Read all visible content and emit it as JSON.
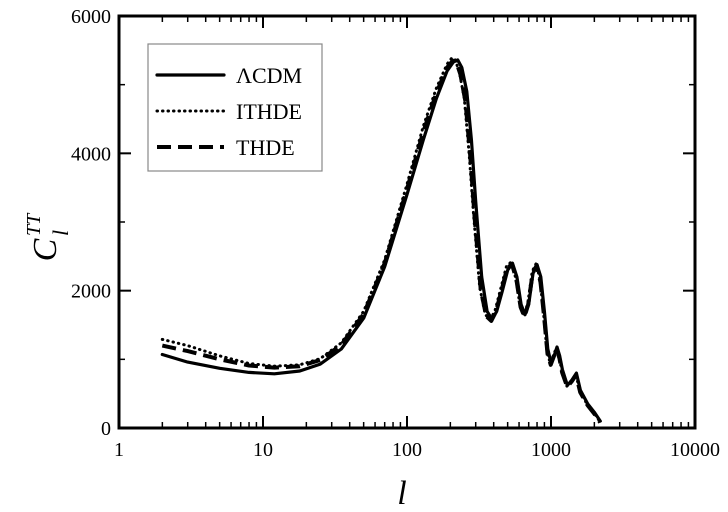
{
  "chart_data": {
    "type": "line",
    "title": "",
    "xlabel": "l",
    "ylabel": {
      "base": "C",
      "superscript": "TT",
      "subscript": "l"
    },
    "xscale": "log",
    "xlim": [
      1,
      10000
    ],
    "ylim": [
      0,
      6000
    ],
    "xticks": [
      1,
      10,
      100,
      1000,
      10000
    ],
    "xtick_labels": [
      "1",
      "10",
      "100",
      "1000",
      "10000"
    ],
    "yticks": [
      0,
      2000,
      4000,
      6000
    ],
    "ytick_labels": [
      "0",
      "2000",
      "4000",
      "6000"
    ],
    "grid": false,
    "legend_position": "top-left",
    "series": [
      {
        "name": "ΛCDM",
        "style": "solid",
        "color": "#000000",
        "x": [
          2,
          3,
          5,
          8,
          12,
          18,
          25,
          35,
          50,
          70,
          100,
          130,
          160,
          190,
          210,
          225,
          240,
          260,
          280,
          300,
          330,
          360,
          390,
          420,
          460,
          500,
          540,
          580,
          620,
          660,
          700,
          750,
          800,
          850,
          900,
          950,
          1000,
          1050,
          1100,
          1150,
          1200,
          1300,
          1400,
          1500,
          1600,
          1800,
          2000,
          2200
        ],
        "y": [
          1070,
          960,
          870,
          810,
          790,
          830,
          930,
          1150,
          1600,
          2350,
          3400,
          4200,
          4800,
          5200,
          5330,
          5360,
          5250,
          4900,
          4200,
          3300,
          2200,
          1700,
          1580,
          1700,
          2000,
          2300,
          2400,
          2200,
          1800,
          1650,
          1800,
          2250,
          2380,
          2200,
          1700,
          1150,
          950,
          1050,
          1180,
          1050,
          850,
          620,
          700,
          800,
          550,
          350,
          230,
          100
        ]
      },
      {
        "name": "ITHDE",
        "style": "dotted",
        "color": "#000000",
        "x": [
          2,
          3,
          5,
          8,
          12,
          18,
          25,
          35,
          50,
          70,
          100,
          130,
          160,
          190,
          205,
          215,
          230,
          250,
          270,
          290,
          320,
          350,
          380,
          410,
          450,
          490,
          530,
          570,
          610,
          650,
          690,
          740,
          790,
          840,
          890,
          940,
          990,
          1040,
          1090,
          1140,
          1190,
          1290,
          1390,
          1490,
          1590,
          1790,
          1990,
          2190
        ],
        "y": [
          1290,
          1200,
          1050,
          940,
          900,
          920,
          1010,
          1240,
          1700,
          2450,
          3550,
          4400,
          4950,
          5300,
          5390,
          5370,
          5200,
          4800,
          4000,
          3100,
          2050,
          1650,
          1580,
          1720,
          2050,
          2350,
          2420,
          2180,
          1780,
          1640,
          1820,
          2280,
          2400,
          2150,
          1650,
          1100,
          940,
          1060,
          1170,
          1030,
          830,
          610,
          690,
          780,
          530,
          340,
          220,
          90
        ]
      },
      {
        "name": "THDE",
        "style": "dashed",
        "color": "#000000",
        "x": [
          2,
          3,
          5,
          8,
          12,
          18,
          25,
          35,
          50,
          70,
          100,
          130,
          160,
          190,
          208,
          220,
          235,
          255,
          275,
          295,
          325,
          355,
          385,
          415,
          455,
          495,
          535,
          575,
          615,
          655,
          695,
          745,
          795,
          845,
          895,
          945,
          995,
          1045,
          1095,
          1145,
          1195,
          1295,
          1395,
          1495,
          1595,
          1795,
          1995,
          2195
        ],
        "y": [
          1200,
          1120,
          1000,
          910,
          880,
          900,
          990,
          1210,
          1660,
          2400,
          3480,
          4320,
          4880,
          5250,
          5350,
          5330,
          5150,
          4750,
          3950,
          3050,
          2020,
          1630,
          1560,
          1700,
          2020,
          2320,
          2390,
          2160,
          1760,
          1620,
          1800,
          2250,
          2370,
          2120,
          1620,
          1080,
          920,
          1040,
          1150,
          1010,
          810,
          600,
          680,
          770,
          520,
          330,
          210,
          80
        ]
      }
    ]
  }
}
